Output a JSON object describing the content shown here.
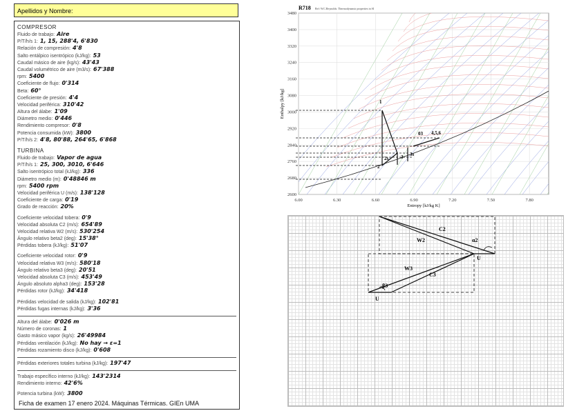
{
  "form": {
    "name_label": "Apellidos y Nombre:",
    "groups": [
      {
        "heading": "COMPRESOR",
        "rows": [
          {
            "label": "Fluido de trabajo:",
            "value": "Aire"
          },
          {
            "label": "P/T/h/s 1:",
            "value": "1, 15, 288'4, 6'830"
          },
          {
            "label": "Relación de compresión:",
            "value": "4'8"
          },
          {
            "label": "Salto entálpico isentrópico (kJ/kg):",
            "value": "53"
          },
          {
            "label": "Caudal másico de aire (kg/s):",
            "value": "43'43"
          },
          {
            "label": "Caudal volumétrico de aire (m3/s):",
            "value": "67'388"
          },
          {
            "label": "rpm:",
            "value": "5400"
          },
          {
            "label": "Coeficiente de flujo:",
            "value": "0'314"
          },
          {
            "label": "Beta:",
            "value": "60°"
          },
          {
            "label": "Coeficiente de presión:",
            "value": "4'4"
          },
          {
            "label": "Velocidad periférica:",
            "value": "310'42"
          },
          {
            "label": "Altura del álabe:",
            "value": "1'09"
          },
          {
            "label": "Diámetro medio:",
            "value": "0'446"
          },
          {
            "label": "Rendimiento compresor:",
            "value": "0'8"
          },
          {
            "label": "Potencia consumida (kW):",
            "value": "3800"
          },
          {
            "label": "P/T/h/s 2:",
            "value": "4'8, 80'88, 264'65, 6'868"
          }
        ]
      },
      {
        "heading": "TURBINA",
        "rows": [
          {
            "label": "Fluido de trabajo:",
            "value": "Vapor de agua"
          },
          {
            "label": "P/T/h/s 1:",
            "value": "25, 300, 3010, 6'646"
          },
          {
            "label": "Salto isentrópico total (kJ/kg):",
            "value": "336"
          },
          {
            "label": "Diámetro medio (m):",
            "value": "0'48846 m"
          },
          {
            "label": "rpm:",
            "value": "5400 rpm"
          },
          {
            "label": "Velocidad periférica U (m/s):",
            "value": "138'128"
          },
          {
            "label": "Coeficiente de carga:",
            "value": "0'19"
          },
          {
            "label": "Grado de reacción:",
            "value": "20%"
          }
        ]
      },
      {
        "rows": [
          {
            "label": "Coeficiente velocidad tobera:",
            "value": "0'9"
          },
          {
            "label": "Velocidad absoluta C2 (m/s):",
            "value": "654'89"
          },
          {
            "label": "Velocidad relativa W2 (m/s):",
            "value": "530'254"
          },
          {
            "label": "Ángulo relativo beta2 (deg):",
            "value": "15'38°"
          },
          {
            "label": "Pérdidas tobera (kJ/kg):",
            "value": "51'07"
          }
        ]
      },
      {
        "rows": [
          {
            "label": "Coeficiente velocidad rotor:",
            "value": "0'9"
          },
          {
            "label": "Velocidad relativa W3 (m/s):",
            "value": "580'18"
          },
          {
            "label": "Ángulo relativo beta3 (deg):",
            "value": "20'51"
          },
          {
            "label": "Velocidad absoluta C3 (m/s):",
            "value": "453'49"
          },
          {
            "label": "Ángulo absoluto alpha3 (deg):",
            "value": "153'28"
          },
          {
            "label": "Pérdidas rotor (kJ/kg):",
            "value": "34'418"
          }
        ]
      },
      {
        "rows": [
          {
            "label": "Pérdidas velocidad de salida (kJ/kg):",
            "value": "102'81"
          },
          {
            "label": "Pérdidas fugas internas (kJ/kg):",
            "value": "3'36"
          }
        ]
      },
      {
        "sep": true,
        "rows": [
          {
            "label": "Altura del álabe:",
            "value": "0'026 m"
          },
          {
            "label": "Número de coronas:",
            "value": "1"
          },
          {
            "label": "Gasto másico vapor (kg/s):",
            "value": "26'49984"
          },
          {
            "label": "Pérdidas ventilación (kJ/kg):",
            "value": "No hay → ε=1"
          },
          {
            "label": "Pérdidas rozamiento disco (kJ/kg):",
            "value": "0'608"
          }
        ]
      },
      {
        "sep": true,
        "rows": [
          {
            "label": "Pérdidas exteriores totales turbina (kJ/kg):",
            "value": "197'47"
          }
        ]
      },
      {
        "sep": true,
        "rows": [
          {
            "label": "Trabajo específico interno (kJ/kg):",
            "value": "143'2314"
          },
          {
            "label": "Rendimiento interno:",
            "value": "42'6%"
          }
        ]
      },
      {
        "rows": [
          {
            "label": "Potencia turbina (kW):",
            "value": "3800"
          }
        ]
      }
    ],
    "footer": "Ficha de examen 17 enero 2024. Máquinas Térmicas. GIEn UMA"
  },
  "chart_data": {
    "type": "mollier",
    "title": "R718",
    "subtitle": "Ref: W.C.Reynolds: Thermodynamic properties in SI",
    "x_label": "Entropy [kJ/kg K]",
    "y_label": "Enthalpy [kJ/kg]",
    "xlim": [
      6.0,
      7.95
    ],
    "ylim": [
      2600,
      3480
    ],
    "xticks": [
      {
        "value": 6.0,
        "label": "6.00"
      },
      {
        "value": 6.3,
        "label": "6.30"
      },
      {
        "value": 6.6,
        "label": "6.60"
      },
      {
        "value": 6.9,
        "label": "6.90"
      },
      {
        "value": 7.2,
        "label": "7.20"
      },
      {
        "value": 7.5,
        "label": "7.50"
      },
      {
        "value": 7.8,
        "label": "7.80"
      }
    ],
    "yticks": [
      2600,
      2680,
      2760,
      2840,
      2920,
      3000,
      3080,
      3160,
      3240,
      3320,
      3400,
      3480
    ],
    "annotations": [
      "1",
      "2",
      "2s",
      "3",
      "3s",
      "03",
      "4,5,6"
    ]
  },
  "triangles": {
    "labels": [
      "C2",
      "W2",
      "U",
      "W3",
      "C3",
      "U",
      "α2",
      "β3"
    ]
  }
}
